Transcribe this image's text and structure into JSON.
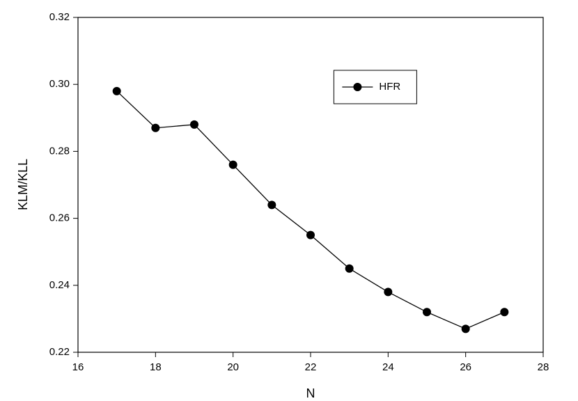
{
  "chart_data": {
    "type": "line",
    "xlabel": "N",
    "ylabel": "KLM/KLL",
    "x": [
      17,
      18,
      19,
      20,
      21,
      22,
      23,
      24,
      25,
      26,
      27
    ],
    "series": [
      {
        "name": "HFR",
        "color": "#000000",
        "values": [
          0.298,
          0.287,
          0.288,
          0.276,
          0.264,
          0.255,
          0.245,
          0.238,
          0.232,
          0.227,
          0.232
        ]
      }
    ],
    "xlim": [
      16,
      28
    ],
    "xticks": [
      16,
      18,
      20,
      22,
      24,
      26,
      28
    ],
    "ylim": [
      0.22,
      0.32
    ],
    "yticks": [
      0.22,
      0.24,
      0.26,
      0.28,
      {
        "value": 0.3,
        "label": "0.30"
      },
      0.32
    ],
    "legend": "upper center",
    "grid": false
  }
}
